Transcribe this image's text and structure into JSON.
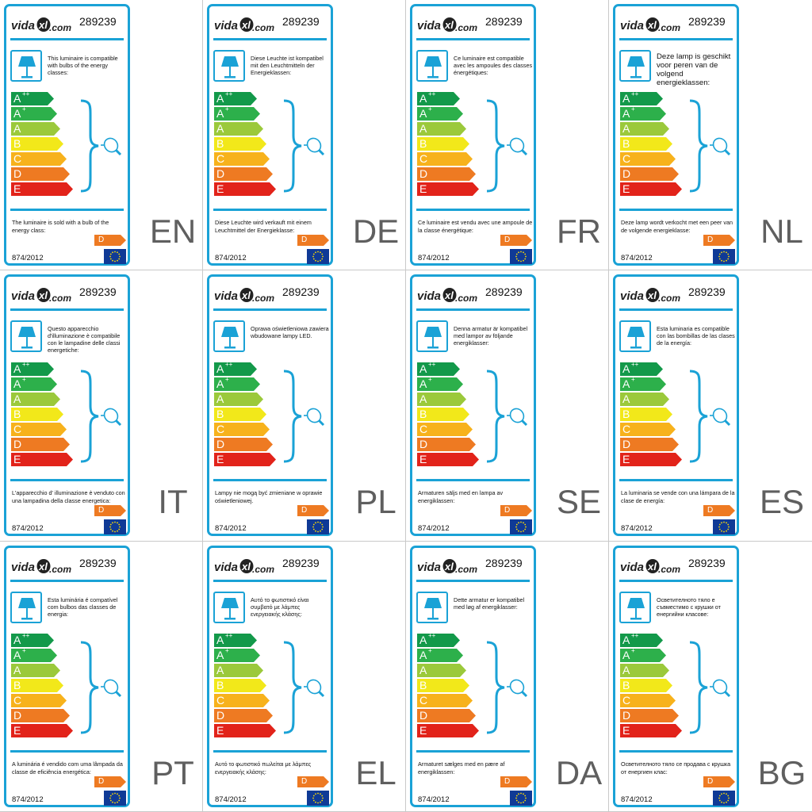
{
  "brand": {
    "logo_text": "vidaXL.com"
  },
  "model_number": "289239",
  "regulation": "874/2012",
  "sold_class": "D",
  "energy_classes": [
    {
      "letter": "A",
      "plus": "++",
      "color": "#13994a"
    },
    {
      "letter": "A",
      "plus": "+",
      "color": "#2db04b"
    },
    {
      "letter": "A",
      "plus": "",
      "color": "#9bc93b"
    },
    {
      "letter": "B",
      "plus": "",
      "color": "#f2e81a"
    },
    {
      "letter": "C",
      "plus": "",
      "color": "#f7b21c"
    },
    {
      "letter": "D",
      "plus": "",
      "color": "#ee7a22"
    },
    {
      "letter": "E",
      "plus": "",
      "color": "#e2231a"
    }
  ],
  "colors": {
    "frame": "#1aa2d6",
    "lang_code": "#5f5f5f",
    "sold_arrow": "#ee7a22",
    "eu_blue": "#0f3a96",
    "eu_star": "#ffdd00"
  },
  "icons": {
    "lamp": "table-lamp-icon",
    "bulb": "light-bulb-icon",
    "eu": "eu-flag-icon"
  },
  "labels": [
    {
      "code": "EN",
      "compat": "This luminaire is compatible with bulbs of the energy classes:",
      "sold": "The luminaire is sold with a bulb of the energy class:"
    },
    {
      "code": "DE",
      "compat": "Diese Leuchte ist kompatibel mit den Leuchtmitteln der Energieklassen:",
      "sold": "Diese Leuchte wird verkauft mit einem Leuchtmittel der Energieklasse:"
    },
    {
      "code": "FR",
      "compat": "Ce luminaire est compatible avec les ampoules des classes énergétiques:",
      "sold": "Ce luminaire est vendu avec une ampoule de la classe énergétique:"
    },
    {
      "code": "NL",
      "compat": "Deze lamp is geschikt voor peren van de volgend energieklassen:",
      "sold": "Deze lamp wordt verkocht met een peer van de volgende energieklasse:"
    },
    {
      "code": "IT",
      "compat": "Questo apparecchio d'illuminazione è compatibile con le lampadine delle classi energetiche:",
      "sold": "L'apparecchio d'   illuminazione è venduto con una lampadina della classe energetica:"
    },
    {
      "code": "PL",
      "compat": "Oprawa oświetleniowa zawiera wbudowane lampy LED.",
      "sold": "Lampy nie mogą być zmieniane w oprawie oświetleniowej."
    },
    {
      "code": "SE",
      "compat": "Denna armatur är kompatibel med lampor av följande energiklasser:",
      "sold": "Armaturen säljs med en lampa av energiklassen:"
    },
    {
      "code": "ES",
      "compat": "Esta luminaria es compatible con las bombillas de las clases de la energía:",
      "sold": "La luminaria se vende con una lámpara de la clase de energía:"
    },
    {
      "code": "PT",
      "compat": "Esta luminária é compatível com bulbos das classes de energia:",
      "sold": "A luminária é vendido com uma lâmpada da classe de eficiência energética:"
    },
    {
      "code": "EL",
      "compat": "Αυτό το φωτιστικό είναι συμβατό με λάμπες ενεργειακής κλάσης:",
      "sold": "Αυτό το φωτιστικό πωλείται με λάμπες ενεργειακής κλάσης:"
    },
    {
      "code": "DA",
      "compat": "Dette armatur er kompatibel med løg af energiklasser:",
      "sold": "Armaturet sælges med en pære af energiklassen:"
    },
    {
      "code": "BG",
      "compat": "Осветителното тяло е съвместимо с крушки от енергийни класове:",
      "sold": "Осветителното тяло се продава с крушка от енергиен клас:"
    }
  ]
}
